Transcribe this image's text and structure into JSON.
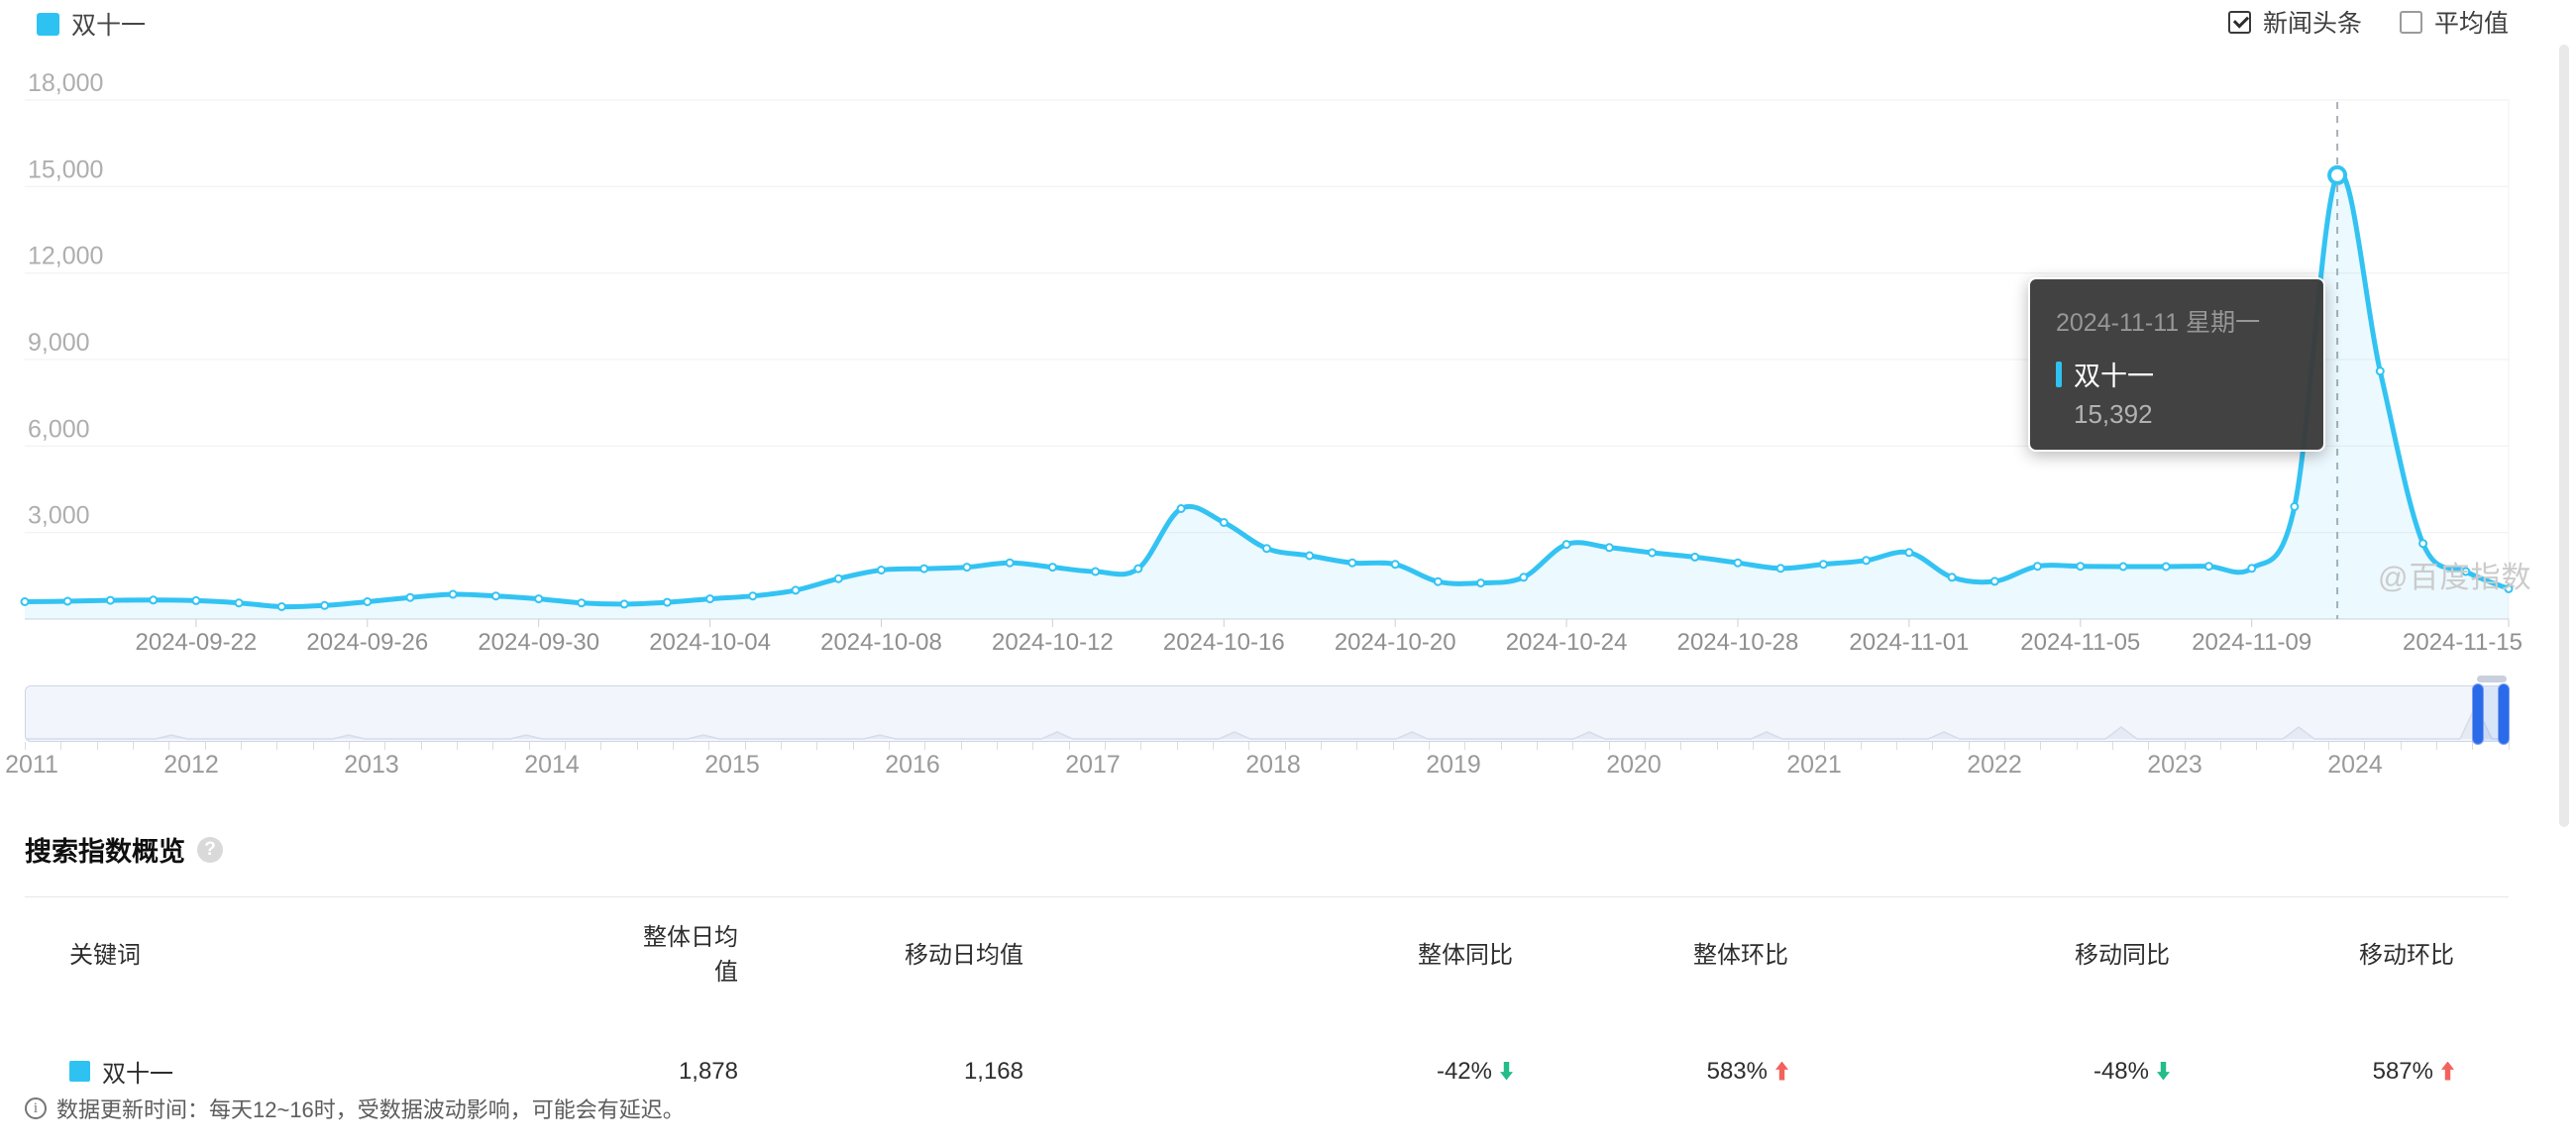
{
  "legend": {
    "label": "双十一",
    "color": "#2ec2f2"
  },
  "controls": {
    "news": {
      "label": "新闻头条",
      "checked": true
    },
    "average": {
      "label": "平均值",
      "checked": false
    }
  },
  "chart_data": {
    "type": "area",
    "series_name": "双十一",
    "ylim": [
      0,
      18000
    ],
    "grid": true,
    "values": [
      600,
      620,
      650,
      660,
      640,
      560,
      430,
      470,
      600,
      750,
      860,
      800,
      700,
      560,
      520,
      580,
      700,
      800,
      1000,
      1400,
      1700,
      1750,
      1800,
      1950,
      1800,
      1650,
      1750,
      3830,
      3350,
      2450,
      2200,
      1950,
      1900,
      1300,
      1250,
      1450,
      2590,
      2480,
      2300,
      2150,
      1950,
      1760,
      1900,
      2035,
      2310,
      1450,
      1310,
      1830,
      1830,
      1820,
      1820,
      1830,
      1760,
      3900,
      15392,
      8600,
      2620,
      1650,
      1050
    ],
    "yticks": [
      {
        "value": 18000,
        "label": "18,000"
      },
      {
        "value": 15000,
        "label": "15,000"
      },
      {
        "value": 12000,
        "label": "12,000"
      },
      {
        "value": 9000,
        "label": "9,000"
      },
      {
        "value": 6000,
        "label": "6,000"
      },
      {
        "value": 3000,
        "label": "3,000"
      }
    ],
    "xticks": [
      {
        "index": 4,
        "label": "2024-09-22"
      },
      {
        "index": 8,
        "label": "2024-09-26"
      },
      {
        "index": 12,
        "label": "2024-09-30"
      },
      {
        "index": 16,
        "label": "2024-10-04"
      },
      {
        "index": 20,
        "label": "2024-10-08"
      },
      {
        "index": 24,
        "label": "2024-10-12"
      },
      {
        "index": 28,
        "label": "2024-10-16"
      },
      {
        "index": 32,
        "label": "2024-10-20"
      },
      {
        "index": 36,
        "label": "2024-10-24"
      },
      {
        "index": 40,
        "label": "2024-10-28"
      },
      {
        "index": 44,
        "label": "2024-11-01"
      },
      {
        "index": 48,
        "label": "2024-11-05"
      },
      {
        "index": 52,
        "label": "2024-11-09"
      },
      {
        "index": 58,
        "label": "2024-11-15"
      }
    ],
    "highlight": {
      "index": 54,
      "date": "2024-11-11",
      "value": 15392
    }
  },
  "tooltip": {
    "date": "2024-11-11 星期一",
    "series": "双十一",
    "value": "15,392"
  },
  "watermark": "@百度指数",
  "slider": {
    "years": [
      "2011",
      "2012",
      "2013",
      "2014",
      "2015",
      "2016",
      "2017",
      "2018",
      "2019",
      "2020",
      "2021",
      "2022",
      "2023",
      "2024"
    ]
  },
  "overview": {
    "title": "搜索指数概览",
    "help_icon": "?",
    "columns": [
      "关键词",
      "整体日均值",
      "移动日均值",
      "整体同比",
      "整体环比",
      "移动同比",
      "移动环比"
    ],
    "rows": [
      {
        "keyword": "双十一",
        "overall_avg": "1,878",
        "mobile_avg": "1,168",
        "overall_yoy": "-42%",
        "overall_yoy_dir": "down",
        "overall_mom": "583%",
        "overall_mom_dir": "up",
        "mobile_yoy": "-48%",
        "mobile_yoy_dir": "down",
        "mobile_mom": "587%",
        "mobile_mom_dir": "up"
      }
    ]
  },
  "footnote": {
    "icon": "i",
    "text": "数据更新时间：每天12~16时，受数据波动影响，可能会有延迟。"
  },
  "colors": {
    "line": "#33c3f3",
    "area": "rgba(47,193,242,0.09)",
    "up": "#f1635c",
    "down": "#23bd87",
    "handle": "#2a6be9",
    "tooltip_bg": "#3a3a3a"
  }
}
